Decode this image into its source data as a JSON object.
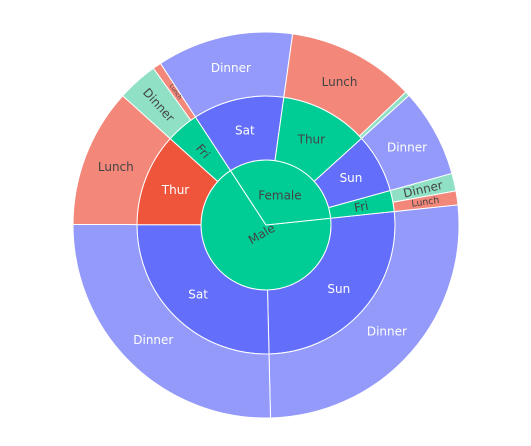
{
  "chart_data": {
    "type": "sunburst",
    "title": "",
    "colors": {
      "Male": "#00cc96",
      "Female": "#00cc96",
      "Male.Sat": "#636efa",
      "Male.Sun": "#636efa",
      "Male.Thur": "#ef553b",
      "Male.Fri": "#00cc96",
      "Female.Sun": "#636efa",
      "Female.Thur": "#00cc96",
      "Female.Sat": "#636efa",
      "Female.Fri": "#00cc96",
      "Dinner.blue": "#939af9",
      "Lunch.red": "#f3877a",
      "Dinner.green": "#8fe0c5",
      "ring_stroke": "#ffffff"
    },
    "children": [
      {
        "name": "Male",
        "label": "Male",
        "value": 3256.82,
        "children": [
          {
            "name": "Sun",
            "label": "Sun",
            "value": 1269.46,
            "children": [
              {
                "name": "Dinner",
                "label": "Dinner",
                "value": 1269.46
              }
            ]
          },
          {
            "name": "Sat",
            "label": "Sat",
            "value": 1227.35,
            "children": [
              {
                "name": "Dinner",
                "label": "Dinner",
                "value": 1227.35
              }
            ]
          },
          {
            "name": "Thur",
            "label": "Thur",
            "value": 561.44,
            "children": [
              {
                "name": "Lunch",
                "label": "Lunch",
                "value": 561.44
              }
            ]
          },
          {
            "name": "Fri",
            "label": "Fri",
            "value": 198.57,
            "children": [
              {
                "name": "Dinner",
                "label": "Dinner",
                "value": 164.41
              },
              {
                "name": "Lunch",
                "label": "Lunch",
                "value": 34.16
              }
            ]
          }
        ]
      },
      {
        "name": "Female",
        "label": "Female",
        "value": 1570.95,
        "children": [
          {
            "name": "Sat",
            "label": "Sat",
            "value": 551.05,
            "children": [
              {
                "name": "Dinner",
                "label": "Dinner",
                "value": 551.05
              }
            ]
          },
          {
            "name": "Thur",
            "label": "Thur",
            "value": 534.89,
            "children": [
              {
                "name": "Lunch",
                "label": "Lunch",
                "value": 516.11
              },
              {
                "name": "Dinner",
                "label": "",
                "value": 18.78
              }
            ]
          },
          {
            "name": "Sun",
            "label": "Sun",
            "value": 357.7,
            "children": [
              {
                "name": "Dinner",
                "label": "Dinner",
                "value": 357.7
              }
            ]
          },
          {
            "name": "Fri",
            "label": "Fri",
            "value": 127.31,
            "children": [
              {
                "name": "Dinner",
                "label": "Dinner",
                "value": 71.34
              },
              {
                "name": "Lunch",
                "label": "Lunch",
                "value": 55.97
              }
            ]
          }
        ]
      }
    ]
  }
}
